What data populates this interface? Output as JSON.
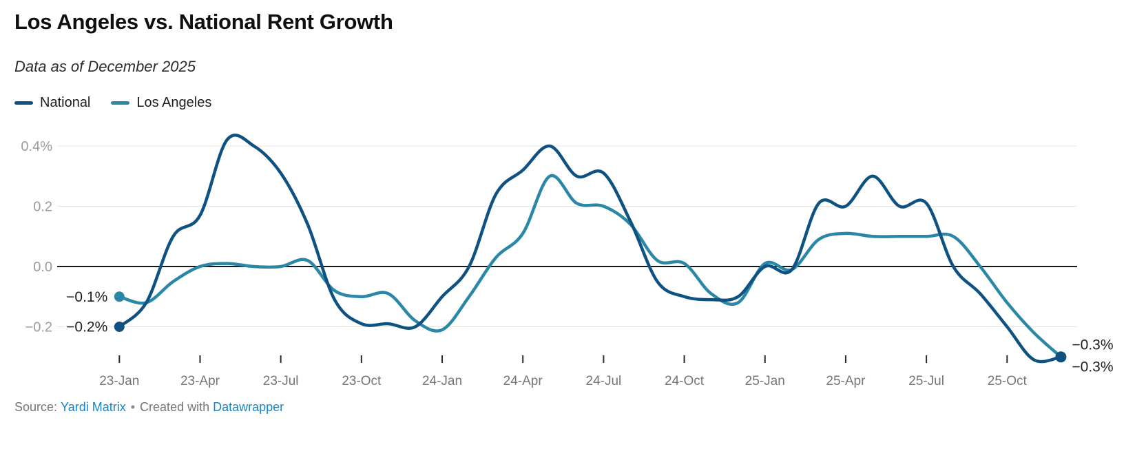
{
  "header": {
    "title": "Los Angeles vs. National Rent Growth",
    "subtitle": "Data as of December 2025"
  },
  "legend": {
    "items": [
      {
        "label": "National",
        "color": "#0f5282"
      },
      {
        "label": "Los Angeles",
        "color": "#2b87a6"
      }
    ]
  },
  "footer": {
    "source_prefix": "Source:",
    "source_link": "Yardi Matrix",
    "separator": "•",
    "created_with": "Created with",
    "tool_link": "Datawrapper"
  },
  "chart_data": {
    "type": "line",
    "title": "Los Angeles vs. National Rent Growth",
    "subtitle": "Data as of December 2025",
    "x": [
      "23-Jan",
      "23-Feb",
      "23-Mar",
      "23-Apr",
      "23-May",
      "23-Jun",
      "23-Jul",
      "23-Aug",
      "23-Sep",
      "23-Oct",
      "23-Nov",
      "23-Dec",
      "24-Jan",
      "24-Feb",
      "24-Mar",
      "24-Apr",
      "24-May",
      "24-Jun",
      "24-Jul",
      "24-Aug",
      "24-Sep",
      "24-Oct",
      "24-Nov",
      "24-Dec",
      "25-Jan",
      "25-Feb",
      "25-Mar",
      "25-Apr",
      "25-May",
      "25-Jun",
      "25-Jul",
      "25-Aug",
      "25-Sep",
      "25-Oct",
      "25-Nov",
      "25-Dec"
    ],
    "series": [
      {
        "name": "National",
        "color": "#0f5282",
        "start_dot": true,
        "end_dot": true,
        "start_label": "−0.2%",
        "end_label": "−0.3%",
        "values": [
          -0.2,
          -0.12,
          0.1,
          0.17,
          0.42,
          0.4,
          0.31,
          0.14,
          -0.11,
          -0.19,
          -0.19,
          -0.2,
          -0.1,
          0.0,
          0.24,
          0.32,
          0.4,
          0.3,
          0.31,
          0.15,
          -0.05,
          -0.1,
          -0.11,
          -0.1,
          0.0,
          -0.01,
          0.21,
          0.2,
          0.3,
          0.2,
          0.21,
          0.0,
          -0.09,
          -0.2,
          -0.31,
          -0.3
        ]
      },
      {
        "name": "Los Angeles",
        "color": "#2b87a6",
        "start_dot": true,
        "end_dot": false,
        "start_label": "−0.1%",
        "end_label": "−0.3%",
        "values": [
          -0.1,
          -0.12,
          -0.05,
          0.0,
          0.01,
          0.0,
          0.0,
          0.02,
          -0.08,
          -0.1,
          -0.09,
          -0.18,
          -0.21,
          -0.1,
          0.03,
          0.11,
          0.3,
          0.21,
          0.2,
          0.14,
          0.02,
          0.01,
          -0.09,
          -0.12,
          0.01,
          -0.01,
          0.09,
          0.11,
          0.1,
          0.1,
          0.1,
          0.1,
          0.0,
          -0.12,
          -0.22,
          -0.3
        ]
      }
    ],
    "yticks": [
      {
        "value": 0.4,
        "label": "0.4%"
      },
      {
        "value": 0.2,
        "label": "0.2"
      },
      {
        "value": 0.0,
        "label": "0.0"
      },
      {
        "value": -0.2,
        "label": "−0.2"
      }
    ],
    "xtick_labels": [
      "23-Jan",
      "23-Apr",
      "23-Jul",
      "23-Oct",
      "24-Jan",
      "24-Apr",
      "24-Jul",
      "24-Oct",
      "25-Jan",
      "25-Apr",
      "25-Jul",
      "25-Oct"
    ],
    "ylabel": "",
    "xlabel": "",
    "ylim": [
      -0.33,
      0.45
    ],
    "grid": true,
    "zero_line": true,
    "legend_position": "top-left"
  }
}
